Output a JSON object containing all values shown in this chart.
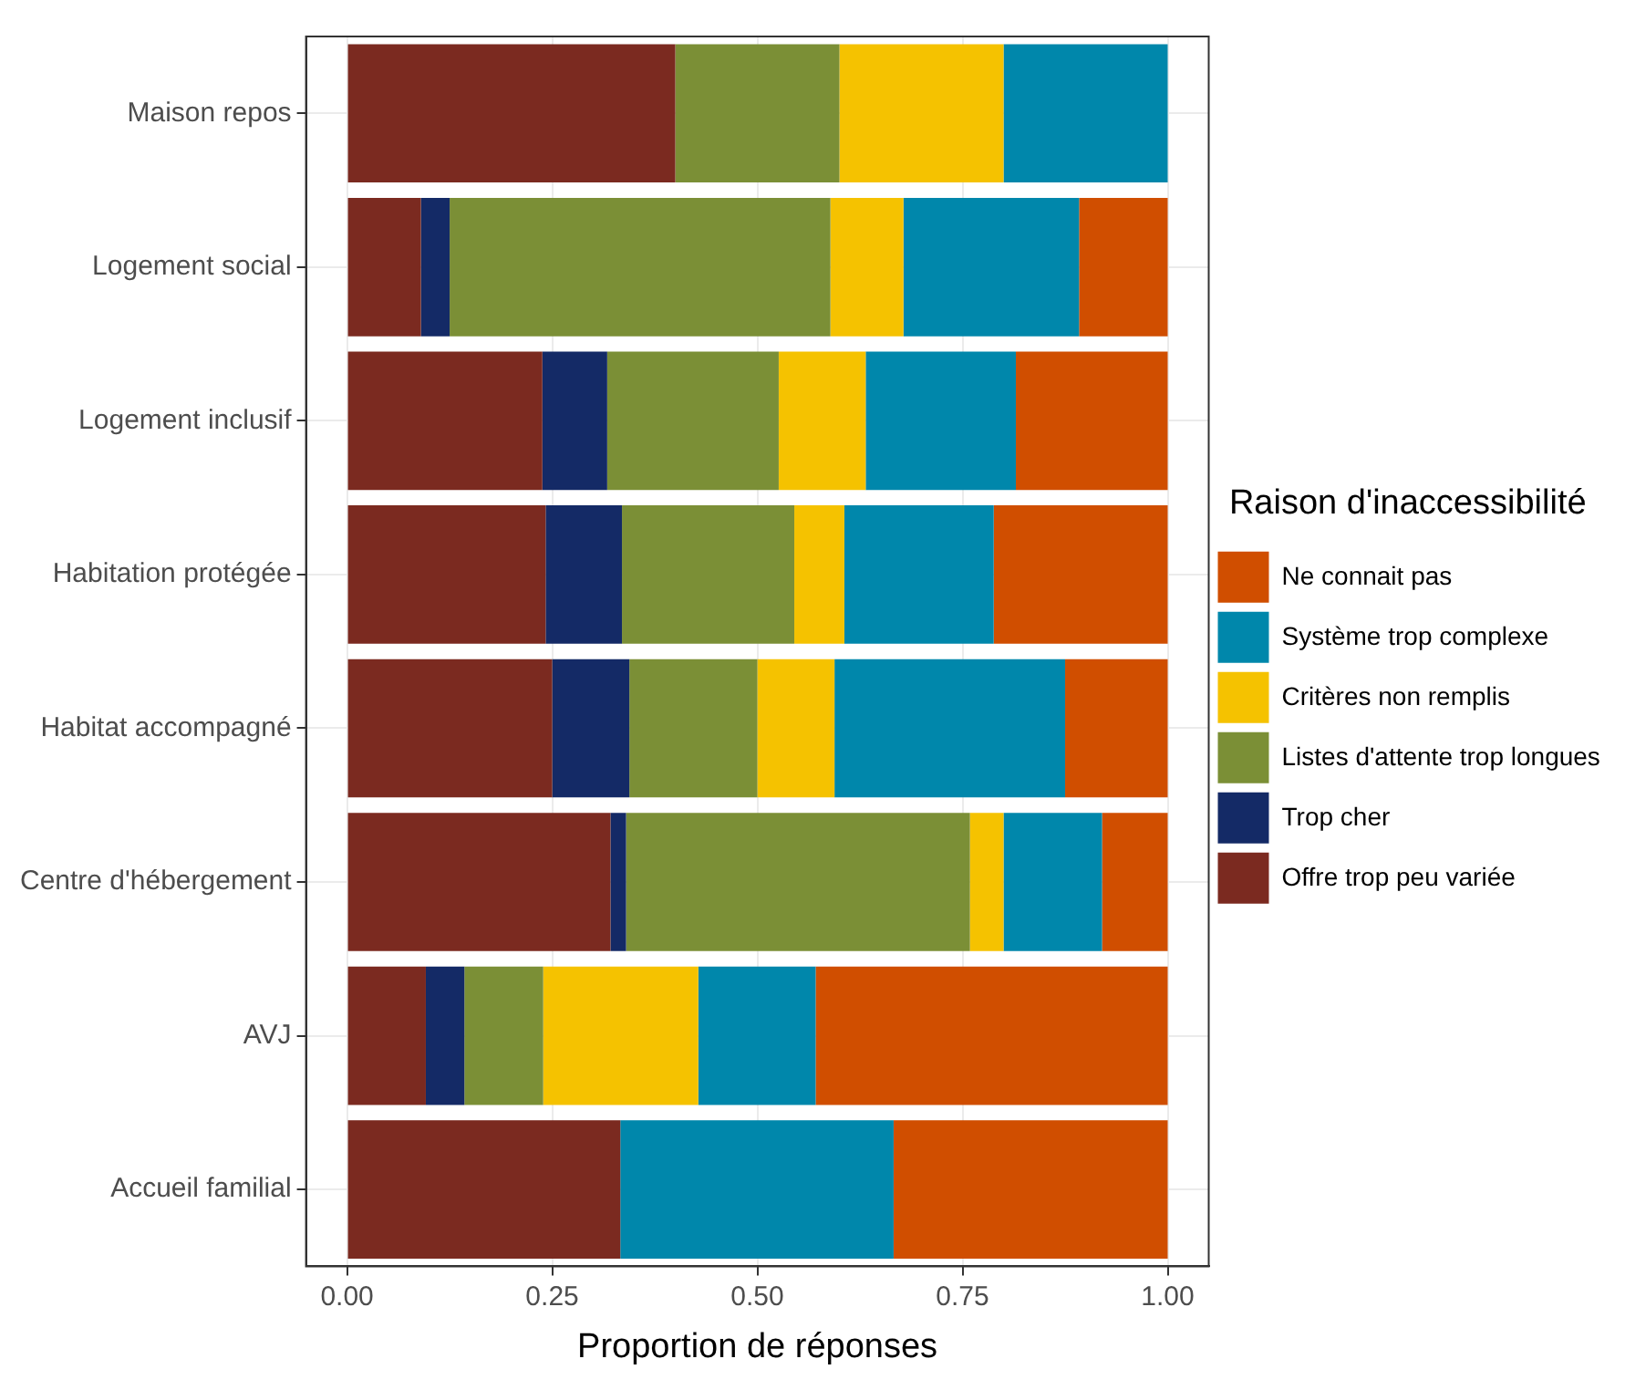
{
  "chart_data": {
    "type": "bar",
    "orientation": "horizontal",
    "stacked": true,
    "xlabel": "Proportion de réponses",
    "legend_title": "Raison d'inaccessibilité",
    "legend": "right",
    "grid": true,
    "categories": [
      "Maison repos",
      "Logement social",
      "Logement inclusif",
      "Habitation protégée",
      "Habitat accompagné",
      "Centre d'hébergement",
      "AVJ",
      "Accueil familial"
    ],
    "xlim": [
      -0.05,
      1.05
    ],
    "xticks": [
      {
        "value": 0,
        "label": "0.00"
      },
      {
        "value": 0.25,
        "label": "0.25"
      },
      {
        "value": 0.5,
        "label": "0.50"
      },
      {
        "value": 0.75,
        "label": "0.75"
      },
      {
        "value": 1,
        "label": "1.00"
      }
    ],
    "series": [
      {
        "name": "Offre trop peu variée",
        "color": "#7b2a20",
        "values": [
          0.4,
          0.09,
          0.238,
          0.242,
          0.25,
          0.321,
          0.096,
          0.333
        ]
      },
      {
        "name": "Trop cher",
        "color": "#142a66",
        "values": [
          0,
          0.035,
          0.079,
          0.093,
          0.094,
          0.019,
          0.047,
          0
        ]
      },
      {
        "name": "Listes d'attente trop longues",
        "color": "#7b8f36",
        "values": [
          0.2,
          0.464,
          0.209,
          0.21,
          0.156,
          0.419,
          0.096,
          0
        ]
      },
      {
        "name": "Critères non remplis",
        "color": "#f5c200",
        "values": [
          0.2,
          0.089,
          0.106,
          0.061,
          0.094,
          0.041,
          0.189,
          0
        ]
      },
      {
        "name": "Système trop complexe",
        "color": "#0087ab",
        "values": [
          0.2,
          0.214,
          0.183,
          0.182,
          0.281,
          0.12,
          0.143,
          0.333
        ]
      },
      {
        "name": "Ne connait pas",
        "color": "#d04e00",
        "values": [
          0,
          0.108,
          0.185,
          0.212,
          0.125,
          0.08,
          0.429,
          0.334
        ]
      }
    ]
  }
}
